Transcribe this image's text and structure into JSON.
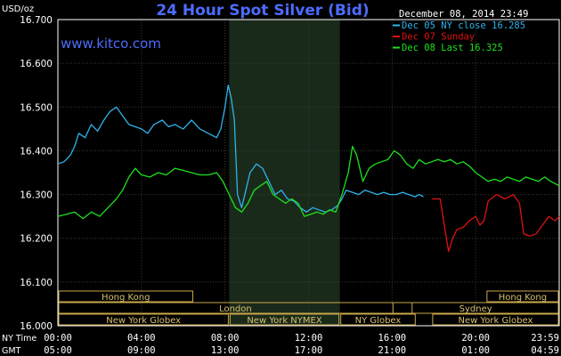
{
  "chart_data": {
    "type": "line",
    "title": "24 Hour Spot Silver (Bid)",
    "ylabel": "USD/oz",
    "website": "www.kitco.com",
    "timestamp": "December 08, 2014 23:49",
    "ylim": [
      16.0,
      16.7
    ],
    "y_ticks": [
      "16.700",
      "16.600",
      "16.500",
      "16.400",
      "16.300",
      "16.200",
      "16.100",
      "16.000"
    ],
    "x_row_labels": [
      "NY Time",
      "GMT"
    ],
    "x_ticks_ny": [
      "00:00",
      "04:00",
      "08:00",
      "12:00",
      "16:00",
      "20:00",
      "23:59"
    ],
    "x_ticks_gmt": [
      "05:00",
      "09:00",
      "13:00",
      "17:00",
      "21:00",
      "01:00",
      "04:59"
    ],
    "grid": true,
    "legend_position": "top-right",
    "series": [
      {
        "name": "Dec 05 NY close 16.285",
        "color": "#2fb3ea",
        "points": [
          [
            0,
            16.37
          ],
          [
            0.3,
            16.375
          ],
          [
            0.6,
            16.39
          ],
          [
            0.8,
            16.41
          ],
          [
            1.0,
            16.44
          ],
          [
            1.3,
            16.43
          ],
          [
            1.6,
            16.46
          ],
          [
            1.9,
            16.445
          ],
          [
            2.2,
            16.47
          ],
          [
            2.5,
            16.49
          ],
          [
            2.8,
            16.5
          ],
          [
            3.1,
            16.48
          ],
          [
            3.4,
            16.46
          ],
          [
            3.7,
            16.455
          ],
          [
            4.0,
            16.45
          ],
          [
            4.3,
            16.44
          ],
          [
            4.6,
            16.46
          ],
          [
            5.0,
            16.47
          ],
          [
            5.3,
            16.455
          ],
          [
            5.6,
            16.46
          ],
          [
            6.0,
            16.45
          ],
          [
            6.4,
            16.47
          ],
          [
            6.8,
            16.45
          ],
          [
            7.2,
            16.44
          ],
          [
            7.6,
            16.43
          ],
          [
            7.8,
            16.45
          ],
          [
            8.0,
            16.5
          ],
          [
            8.15,
            16.55
          ],
          [
            8.3,
            16.52
          ],
          [
            8.45,
            16.47
          ],
          [
            8.6,
            16.3
          ],
          [
            8.8,
            16.27
          ],
          [
            9.0,
            16.31
          ],
          [
            9.2,
            16.35
          ],
          [
            9.5,
            16.37
          ],
          [
            9.8,
            16.36
          ],
          [
            10.1,
            16.33
          ],
          [
            10.4,
            16.3
          ],
          [
            10.7,
            16.31
          ],
          [
            11.0,
            16.29
          ],
          [
            11.3,
            16.285
          ],
          [
            11.6,
            16.27
          ],
          [
            11.9,
            16.26
          ],
          [
            12.2,
            16.27
          ],
          [
            12.5,
            16.265
          ],
          [
            12.8,
            16.26
          ],
          [
            13.1,
            16.265
          ],
          [
            13.4,
            16.275
          ],
          [
            13.6,
            16.29
          ],
          [
            13.8,
            16.31
          ],
          [
            14.1,
            16.305
          ],
          [
            14.4,
            16.3
          ],
          [
            14.7,
            16.31
          ],
          [
            15.0,
            16.305
          ],
          [
            15.3,
            16.3
          ],
          [
            15.6,
            16.305
          ],
          [
            15.9,
            16.3
          ],
          [
            16.2,
            16.3
          ],
          [
            16.5,
            16.305
          ],
          [
            16.8,
            16.3
          ],
          [
            17.1,
            16.295
          ],
          [
            17.3,
            16.3
          ],
          [
            17.5,
            16.295
          ]
        ]
      },
      {
        "name": "Dec 07 Sunday",
        "color": "#e01010",
        "points": [
          [
            17.9,
            16.29
          ],
          [
            18.3,
            16.29
          ],
          [
            18.5,
            16.23
          ],
          [
            18.7,
            16.17
          ],
          [
            18.9,
            16.2
          ],
          [
            19.1,
            16.22
          ],
          [
            19.4,
            16.225
          ],
          [
            19.7,
            16.24
          ],
          [
            20.0,
            16.25
          ],
          [
            20.2,
            16.23
          ],
          [
            20.4,
            16.24
          ],
          [
            20.6,
            16.285
          ],
          [
            21.0,
            16.3
          ],
          [
            21.4,
            16.29
          ],
          [
            21.8,
            16.3
          ],
          [
            22.1,
            16.28
          ],
          [
            22.3,
            16.21
          ],
          [
            22.6,
            16.205
          ],
          [
            22.9,
            16.21
          ],
          [
            23.2,
            16.23
          ],
          [
            23.5,
            16.25
          ],
          [
            23.8,
            16.24
          ],
          [
            24.0,
            16.25
          ]
        ]
      },
      {
        "name": "Dec 08 Last 16.325",
        "color": "#1ee01e",
        "points": [
          [
            0,
            16.25
          ],
          [
            0.4,
            16.255
          ],
          [
            0.8,
            16.26
          ],
          [
            1.2,
            16.245
          ],
          [
            1.6,
            16.26
          ],
          [
            2.0,
            16.25
          ],
          [
            2.4,
            16.27
          ],
          [
            2.8,
            16.29
          ],
          [
            3.1,
            16.31
          ],
          [
            3.4,
            16.34
          ],
          [
            3.7,
            16.36
          ],
          [
            4.0,
            16.345
          ],
          [
            4.4,
            16.34
          ],
          [
            4.8,
            16.35
          ],
          [
            5.2,
            16.345
          ],
          [
            5.6,
            16.36
          ],
          [
            6.0,
            16.355
          ],
          [
            6.4,
            16.35
          ],
          [
            6.8,
            16.345
          ],
          [
            7.2,
            16.345
          ],
          [
            7.6,
            16.35
          ],
          [
            7.9,
            16.33
          ],
          [
            8.2,
            16.3
          ],
          [
            8.5,
            16.27
          ],
          [
            8.8,
            16.26
          ],
          [
            9.1,
            16.28
          ],
          [
            9.4,
            16.31
          ],
          [
            9.7,
            16.32
          ],
          [
            10.0,
            16.33
          ],
          [
            10.3,
            16.3
          ],
          [
            10.6,
            16.29
          ],
          [
            10.9,
            16.28
          ],
          [
            11.2,
            16.29
          ],
          [
            11.5,
            16.28
          ],
          [
            11.8,
            16.25
          ],
          [
            12.1,
            16.255
          ],
          [
            12.4,
            16.26
          ],
          [
            12.7,
            16.255
          ],
          [
            13.0,
            16.265
          ],
          [
            13.3,
            16.26
          ],
          [
            13.6,
            16.3
          ],
          [
            13.9,
            16.35
          ],
          [
            14.1,
            16.41
          ],
          [
            14.3,
            16.39
          ],
          [
            14.6,
            16.33
          ],
          [
            14.9,
            16.36
          ],
          [
            15.2,
            16.37
          ],
          [
            15.5,
            16.375
          ],
          [
            15.8,
            16.38
          ],
          [
            16.1,
            16.4
          ],
          [
            16.4,
            16.39
          ],
          [
            16.7,
            16.37
          ],
          [
            17.0,
            16.36
          ],
          [
            17.3,
            16.38
          ],
          [
            17.6,
            16.37
          ],
          [
            17.9,
            16.375
          ],
          [
            18.2,
            16.38
          ],
          [
            18.5,
            16.375
          ],
          [
            18.8,
            16.38
          ],
          [
            19.1,
            16.37
          ],
          [
            19.4,
            16.375
          ],
          [
            19.7,
            16.365
          ],
          [
            20.0,
            16.35
          ],
          [
            20.3,
            16.34
          ],
          [
            20.6,
            16.33
          ],
          [
            20.9,
            16.335
          ],
          [
            21.2,
            16.33
          ],
          [
            21.5,
            16.34
          ],
          [
            21.8,
            16.335
          ],
          [
            22.1,
            16.33
          ],
          [
            22.4,
            16.34
          ],
          [
            22.7,
            16.335
          ],
          [
            23.0,
            16.33
          ],
          [
            23.3,
            16.34
          ],
          [
            23.6,
            16.33
          ],
          [
            23.8,
            16.325
          ],
          [
            24.0,
            16.32
          ]
        ]
      }
    ],
    "sessions": [
      {
        "name": "Hong Kong",
        "start": 0,
        "end": 6.5,
        "row": 0
      },
      {
        "name": "Hong Kong",
        "start": 20.5,
        "end": 24,
        "row": 0
      },
      {
        "name": "London",
        "start": 0,
        "end": 17,
        "row": 1
      },
      {
        "name": "Sydney",
        "start": 16,
        "end": 24,
        "row": 1
      },
      {
        "name": "New York Globex",
        "start": 0,
        "end": 8.2,
        "row": 2
      },
      {
        "name": "New York NYMEX",
        "start": 8.2,
        "end": 13.5,
        "row": 2
      },
      {
        "name": "NY Globex",
        "start": 13.5,
        "end": 17.15,
        "row": 2
      },
      {
        "name": "New York Globex",
        "start": 17.9,
        "end": 24,
        "row": 2
      }
    ],
    "highlight_range": [
      8.2,
      13.5
    ]
  }
}
